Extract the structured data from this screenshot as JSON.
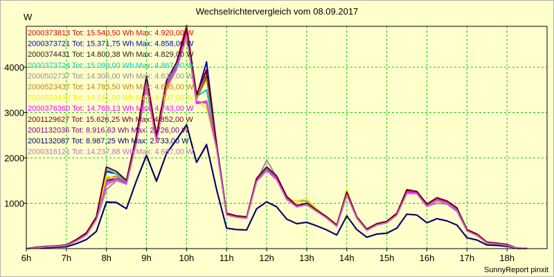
{
  "title": "Wechselrichtervergleich vom 08.09.2017",
  "unit_label": "W",
  "footer": "SunnyReport pinxit",
  "chart_data": {
    "type": "line",
    "title": "Wechselrichtervergleich vom 08.09.2017",
    "xlabel": "",
    "ylabel": "W",
    "xlim": [
      6,
      19
    ],
    "ylim": [
      0,
      4900
    ],
    "x_ticks": [
      "6h",
      "7h",
      "8h",
      "9h",
      "10h",
      "11h",
      "12h",
      "13h",
      "14h",
      "15h",
      "16h",
      "17h",
      "18h"
    ],
    "y_ticks": [
      1000,
      2000,
      3000,
      4000
    ],
    "grid": true,
    "legend_position": "top-left",
    "x": [
      6,
      6.25,
      6.5,
      6.75,
      7,
      7.25,
      7.5,
      7.75,
      8,
      8.25,
      8.5,
      8.75,
      9,
      9.25,
      9.5,
      9.75,
      10,
      10.25,
      10.5,
      10.75,
      11,
      11.25,
      11.5,
      11.75,
      12,
      12.25,
      12.5,
      12.75,
      13,
      13.25,
      13.5,
      13.75,
      14,
      14.25,
      14.5,
      14.75,
      15,
      15.25,
      15.5,
      15.75,
      16,
      16.25,
      16.5,
      16.75,
      17,
      17.25,
      17.5,
      17.75,
      18,
      18.25,
      18.5
    ],
    "series": [
      {
        "name": "2000373813",
        "legend": "2000373813 Tot: 15.540,50 Wh Max: 4.920,00 W",
        "color": "#dd0000",
        "values": [
          0,
          30,
          50,
          60,
          80,
          200,
          350,
          700,
          1800,
          1700,
          1500,
          2500,
          3800,
          2500,
          3700,
          4100,
          4920,
          3400,
          3900,
          2300,
          780,
          720,
          700,
          1550,
          1800,
          1600,
          1150,
          950,
          1000,
          850,
          700,
          520,
          1250,
          700,
          430,
          550,
          600,
          780,
          1280,
          1260,
          980,
          1120,
          1050,
          880,
          420,
          320,
          140,
          120,
          90,
          10,
          5
        ]
      },
      {
        "name": "2000373721",
        "legend": "2000373721 Tot: 15.371,75 Wh Max: 4.858,00 W",
        "color": "#0000cc",
        "values": [
          0,
          25,
          45,
          55,
          70,
          190,
          330,
          680,
          1700,
          1650,
          1480,
          2450,
          3700,
          2450,
          3650,
          4050,
          4858,
          3350,
          4120,
          2280,
          770,
          710,
          690,
          1520,
          1760,
          1560,
          1120,
          930,
          980,
          830,
          690,
          510,
          1220,
          690,
          420,
          540,
          590,
          760,
          1250,
          1240,
          960,
          1100,
          1030,
          860,
          410,
          310,
          130,
          110,
          80,
          10,
          5
        ]
      },
      {
        "name": "2000374431",
        "legend": "2000374431 Tot: 14.800,38 Wh Max: 4.829,00 W",
        "color": "#202020",
        "values": [
          0,
          25,
          45,
          55,
          70,
          180,
          320,
          660,
          1500,
          1550,
          1450,
          2400,
          3650,
          2400,
          3600,
          4000,
          4829,
          3300,
          3800,
          2250,
          760,
          700,
          680,
          1500,
          1740,
          1540,
          1100,
          920,
          970,
          820,
          680,
          500,
          1200,
          680,
          410,
          530,
          580,
          750,
          1240,
          1230,
          950,
          1090,
          1020,
          850,
          400,
          300,
          125,
          105,
          75,
          10,
          5
        ]
      },
      {
        "name": "2000373724",
        "legend": "2000373724 Tot: 15.099,00 Wh Max: 4.867,00 W",
        "color": "#00cccc",
        "values": [
          0,
          25,
          45,
          55,
          75,
          190,
          340,
          690,
          1750,
          1650,
          1470,
          2450,
          3700,
          2450,
          3650,
          4050,
          4867,
          3350,
          3500,
          2270,
          770,
          710,
          690,
          1520,
          1760,
          1560,
          1120,
          930,
          980,
          830,
          690,
          510,
          1220,
          690,
          420,
          540,
          590,
          760,
          1250,
          1240,
          960,
          1100,
          1030,
          860,
          410,
          310,
          130,
          110,
          80,
          10,
          5
        ]
      },
      {
        "name": "2000502737",
        "legend": "2000502737 Tot: 14.306,00 Wh Max: 4.630,00 W",
        "color": "#909090",
        "values": [
          0,
          20,
          40,
          50,
          65,
          170,
          300,
          640,
          1300,
          1500,
          1420,
          2350,
          3550,
          2350,
          3500,
          3950,
          4630,
          3250,
          3200,
          2200,
          740,
          690,
          670,
          1480,
          1950,
          1580,
          1080,
          1050,
          1050,
          850,
          670,
          490,
          1180,
          670,
          400,
          520,
          570,
          740,
          1220,
          1210,
          930,
          1000,
          980,
          820,
          390,
          290,
          120,
          100,
          70,
          10,
          5
        ]
      },
      {
        "name": "2000523437",
        "legend": "2000523437 Tot: 14.785,50 Wh Max: 4.695,00 W",
        "color": "#b8860b",
        "values": [
          0,
          25,
          45,
          55,
          70,
          180,
          320,
          650,
          1550,
          1600,
          1440,
          2400,
          3600,
          2400,
          3550,
          4000,
          4695,
          3300,
          3750,
          2230,
          760,
          700,
          680,
          1500,
          1740,
          1540,
          1100,
          920,
          970,
          820,
          680,
          500,
          1200,
          680,
          410,
          530,
          580,
          750,
          1240,
          1230,
          950,
          1050,
          1000,
          850,
          400,
          300,
          125,
          105,
          75,
          10,
          5
        ]
      },
      {
        "name": "2000523438",
        "legend": "2000523438 Tot: 14.161,50 Wh Max: 4.607,00 W",
        "color": "#f0f000",
        "values": [
          0,
          20,
          40,
          50,
          65,
          170,
          300,
          640,
          1600,
          1550,
          1420,
          2350,
          3550,
          2350,
          3500,
          3950,
          4607,
          3250,
          3100,
          2200,
          740,
          690,
          670,
          1480,
          1720,
          1520,
          1080,
          1050,
          1100,
          880,
          670,
          490,
          1300,
          670,
          400,
          520,
          570,
          740,
          1220,
          1210,
          930,
          1070,
          1000,
          840,
          390,
          290,
          120,
          100,
          70,
          10,
          5
        ]
      },
      {
        "name": "2000376360",
        "legend": "2000376360 Tot: 14.769,13 Wh Max: 4.743,00 W",
        "color": "#ff00ff",
        "values": [
          0,
          25,
          45,
          55,
          70,
          180,
          320,
          650,
          1450,
          1550,
          1440,
          2400,
          3600,
          2400,
          3600,
          4000,
          4743,
          3200,
          3250,
          2230,
          760,
          700,
          680,
          1500,
          1740,
          1540,
          1100,
          920,
          970,
          820,
          680,
          500,
          1200,
          680,
          410,
          530,
          580,
          750,
          1240,
          1230,
          950,
          1090,
          1020,
          850,
          400,
          300,
          125,
          105,
          75,
          10,
          5
        ]
      },
      {
        "name": "2001129627",
        "legend": "2001129627 Tot: 15.626,25 Wh Max: 4.852,00 W",
        "color": "#6a0018",
        "values": [
          0,
          30,
          50,
          60,
          80,
          200,
          350,
          700,
          1800,
          1700,
          1500,
          2500,
          3800,
          2500,
          3700,
          4100,
          4852,
          3400,
          3950,
          2300,
          780,
          720,
          700,
          1550,
          1800,
          1600,
          1150,
          950,
          1000,
          850,
          700,
          520,
          1250,
          700,
          430,
          550,
          600,
          780,
          1300,
          1260,
          980,
          1120,
          1050,
          900,
          420,
          320,
          140,
          120,
          90,
          10,
          5
        ]
      },
      {
        "name": "2001132036",
        "legend": "2001132036 Tot: 8.916,63 Wh Max: 2.726,00 W",
        "color": "#800080",
        "values": [
          0,
          15,
          25,
          30,
          40,
          110,
          200,
          380,
          1020,
          1010,
          880,
          1500,
          2050,
          1480,
          2100,
          2400,
          2726,
          1900,
          2300,
          1300,
          450,
          420,
          410,
          880,
          1030,
          920,
          650,
          550,
          580,
          500,
          410,
          300,
          720,
          420,
          250,
          320,
          340,
          450,
          760,
          740,
          570,
          660,
          610,
          520,
          240,
          190,
          80,
          70,
          50,
          5,
          3
        ]
      },
      {
        "name": "2001132087",
        "legend": "2001132087 Tot: 8.987,25 Wh Max: 2.733,00 W",
        "color": "#000066",
        "values": [
          0,
          15,
          25,
          30,
          40,
          110,
          200,
          380,
          1030,
          1020,
          880,
          1500,
          2060,
          1490,
          2100,
          2400,
          2733,
          1900,
          2280,
          1300,
          450,
          420,
          410,
          880,
          1030,
          920,
          650,
          550,
          580,
          500,
          410,
          300,
          720,
          420,
          250,
          320,
          340,
          450,
          760,
          740,
          570,
          660,
          610,
          520,
          240,
          190,
          80,
          70,
          50,
          5,
          3
        ]
      },
      {
        "name": "2000316121",
        "legend": "2000316121 Tot: 14.237,88 Wh Max: 4.687,00 W",
        "color": "#cc66cc",
        "values": [
          0,
          20,
          40,
          50,
          65,
          170,
          300,
          640,
          1400,
          1520,
          1420,
          2350,
          3550,
          2350,
          3550,
          3950,
          4687,
          3250,
          3200,
          2200,
          740,
          690,
          670,
          1480,
          1720,
          1520,
          1080,
          920,
          970,
          820,
          670,
          490,
          1180,
          670,
          400,
          520,
          570,
          740,
          1220,
          1210,
          930,
          1070,
          1000,
          840,
          390,
          290,
          120,
          100,
          70,
          10,
          5
        ]
      }
    ]
  }
}
